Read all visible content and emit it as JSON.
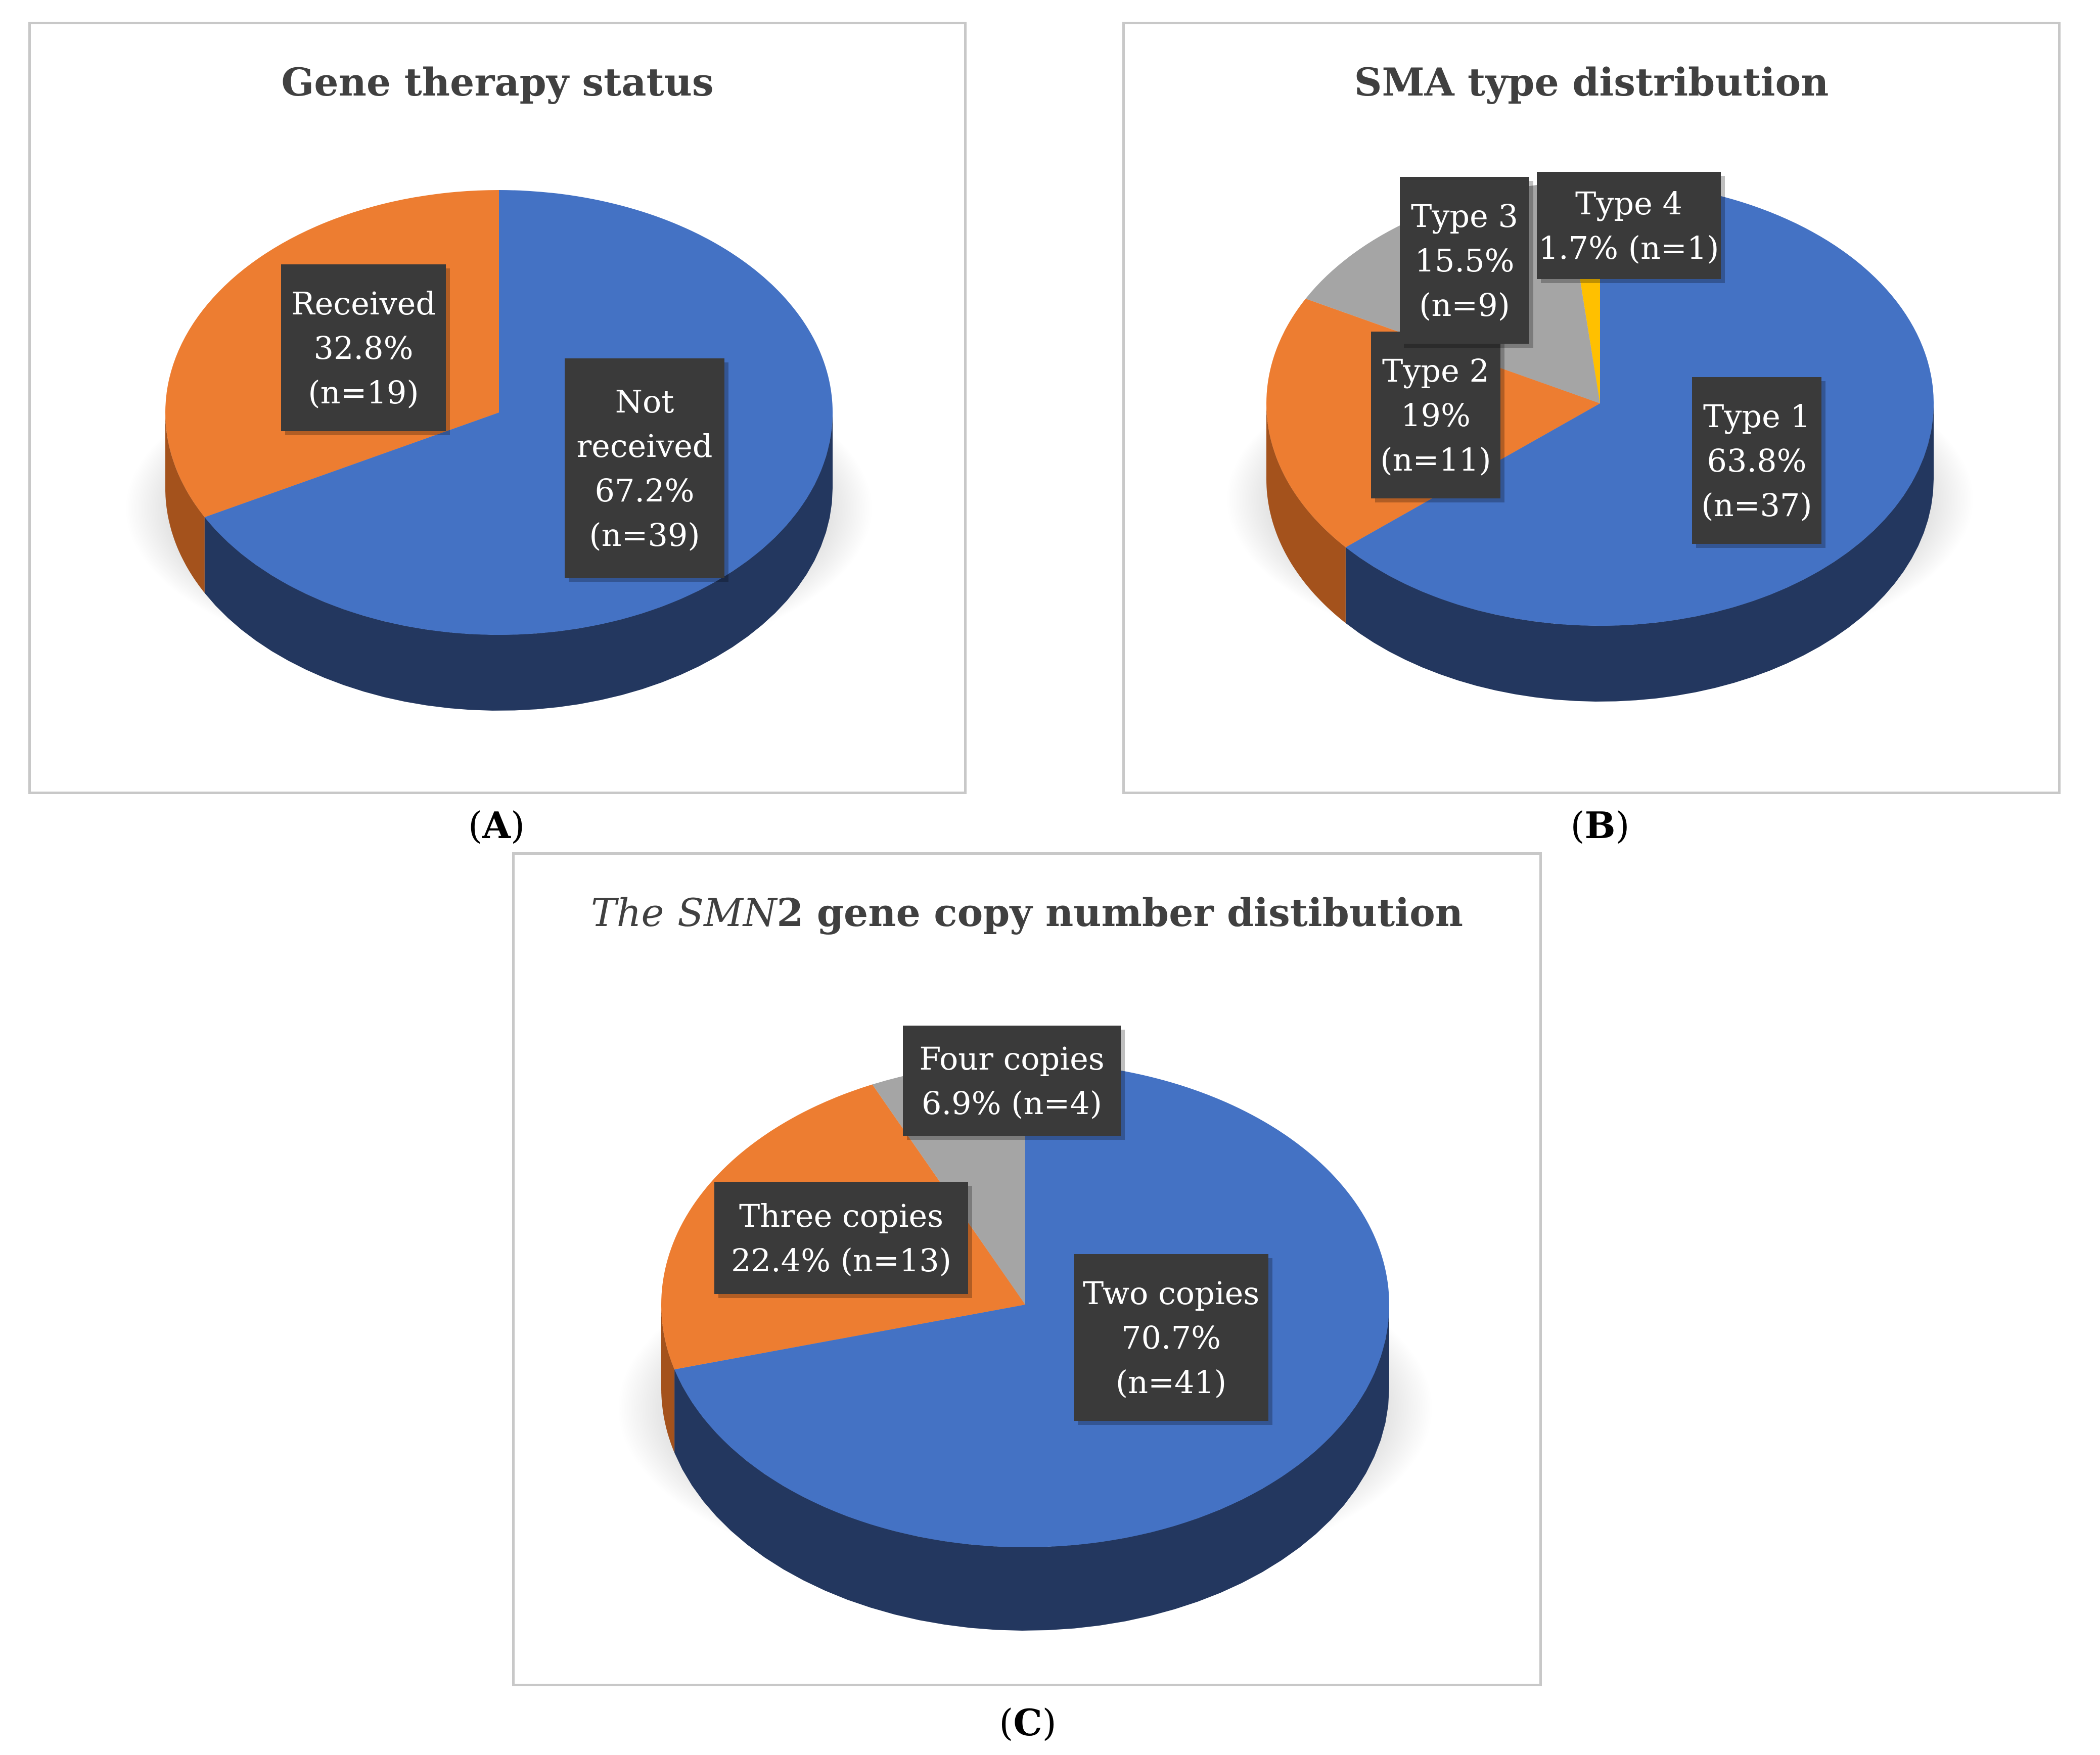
{
  "panels": [
    {
      "id": "a",
      "title": "Gene therapy status",
      "letter": "A"
    },
    {
      "id": "b",
      "title": "SMA type distribution",
      "letter": "B"
    },
    {
      "id": "c",
      "title_italic_1": "The",
      "title_italic_2": "SMN",
      "title_rest": "2 gene copy number distibution",
      "letter": "C"
    }
  ],
  "colors": {
    "blue": "#4472C4",
    "blue_side": "#23375F",
    "orange": "#ED7D31",
    "orange_side": "#A4521C",
    "gray": "#A5A5A5",
    "gray_side": "#6E6E6E",
    "yellow": "#FFC000",
    "yellow_side": "#B38600",
    "label_box": "#3A3A3A"
  },
  "chart_data": [
    {
      "type": "pie",
      "title": "Gene therapy status",
      "three_d": true,
      "slices": [
        {
          "label": "Not received",
          "percent": 67.2,
          "n": 39,
          "color": "#4472C4",
          "data_label": [
            "Not",
            "received",
            "67.2%",
            "(n=39)"
          ]
        },
        {
          "label": "Received",
          "percent": 32.8,
          "n": 19,
          "color": "#ED7D31",
          "data_label": [
            "Received",
            "32.8%",
            "(n=19)"
          ]
        }
      ]
    },
    {
      "type": "pie",
      "title": "SMA type distribution",
      "three_d": true,
      "slices": [
        {
          "label": "Type 1",
          "percent": 63.8,
          "n": 37,
          "color": "#4472C4",
          "data_label": [
            "Type 1",
            "63.8%",
            "(n=37)"
          ]
        },
        {
          "label": "Type 2",
          "percent": 19,
          "n": 11,
          "color": "#ED7D31",
          "data_label": [
            "Type 2",
            "19%",
            "(n=11)"
          ]
        },
        {
          "label": "Type 3",
          "percent": 15.5,
          "n": 9,
          "color": "#A5A5A5",
          "data_label": [
            "Type 3",
            "15.5%",
            "(n=9)"
          ]
        },
        {
          "label": "Type 4",
          "percent": 1.7,
          "n": 1,
          "color": "#FFC000",
          "data_label": [
            "Type 4",
            "1.7% (n=1)"
          ]
        }
      ]
    },
    {
      "type": "pie",
      "title": "The SMN2 gene copy number distibution",
      "three_d": true,
      "slices": [
        {
          "label": "Two copies",
          "percent": 70.7,
          "n": 41,
          "color": "#4472C4",
          "data_label": [
            "Two copies",
            "70.7%",
            "(n=41)"
          ]
        },
        {
          "label": "Three copies",
          "percent": 22.4,
          "n": 13,
          "color": "#ED7D31",
          "data_label": [
            "Three copies",
            "22.4% (n=13)"
          ]
        },
        {
          "label": "Four copies",
          "percent": 6.9,
          "n": 4,
          "color": "#A5A5A5",
          "data_label": [
            "Four copies",
            "6.9% (n=4)"
          ]
        }
      ]
    }
  ]
}
